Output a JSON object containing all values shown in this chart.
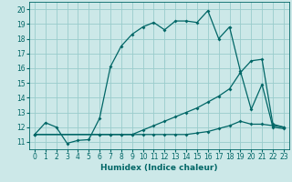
{
  "title": "",
  "xlabel": "Humidex (Indice chaleur)",
  "bg_color": "#cce8e8",
  "grid_color": "#99cccc",
  "line_color": "#006666",
  "xlim": [
    -0.5,
    23.5
  ],
  "ylim": [
    10.5,
    20.5
  ],
  "xticks": [
    0,
    1,
    2,
    3,
    4,
    5,
    6,
    7,
    8,
    9,
    10,
    11,
    12,
    13,
    14,
    15,
    16,
    17,
    18,
    19,
    20,
    21,
    22,
    23
  ],
  "yticks": [
    11,
    12,
    13,
    14,
    15,
    16,
    17,
    18,
    19,
    20
  ],
  "line1_x": [
    0,
    1,
    2,
    3,
    4,
    5,
    6,
    7,
    8,
    9,
    10,
    11,
    12,
    13,
    14,
    15,
    16,
    17,
    18,
    19,
    20,
    21,
    22,
    23
  ],
  "line1_y": [
    11.5,
    12.3,
    12.0,
    10.9,
    11.1,
    11.15,
    12.6,
    16.1,
    17.5,
    18.3,
    18.8,
    19.1,
    18.6,
    19.2,
    19.2,
    19.1,
    19.9,
    18.0,
    18.8,
    15.8,
    13.2,
    14.9,
    12.0,
    11.9
  ],
  "line2_x": [
    0,
    6,
    7,
    8,
    9,
    10,
    11,
    12,
    13,
    14,
    15,
    16,
    17,
    18,
    19,
    20,
    21,
    22,
    23
  ],
  "line2_y": [
    11.5,
    11.5,
    11.5,
    11.5,
    11.5,
    11.8,
    12.1,
    12.4,
    12.7,
    13.0,
    13.3,
    13.7,
    14.1,
    14.6,
    15.7,
    16.5,
    16.6,
    12.2,
    12.0
  ],
  "line3_x": [
    0,
    6,
    7,
    8,
    9,
    10,
    11,
    12,
    13,
    14,
    15,
    16,
    17,
    18,
    19,
    20,
    21,
    22,
    23
  ],
  "line3_y": [
    11.5,
    11.5,
    11.5,
    11.5,
    11.5,
    11.5,
    11.5,
    11.5,
    11.5,
    11.5,
    11.6,
    11.7,
    11.9,
    12.1,
    12.4,
    12.2,
    12.2,
    12.1,
    12.0
  ]
}
